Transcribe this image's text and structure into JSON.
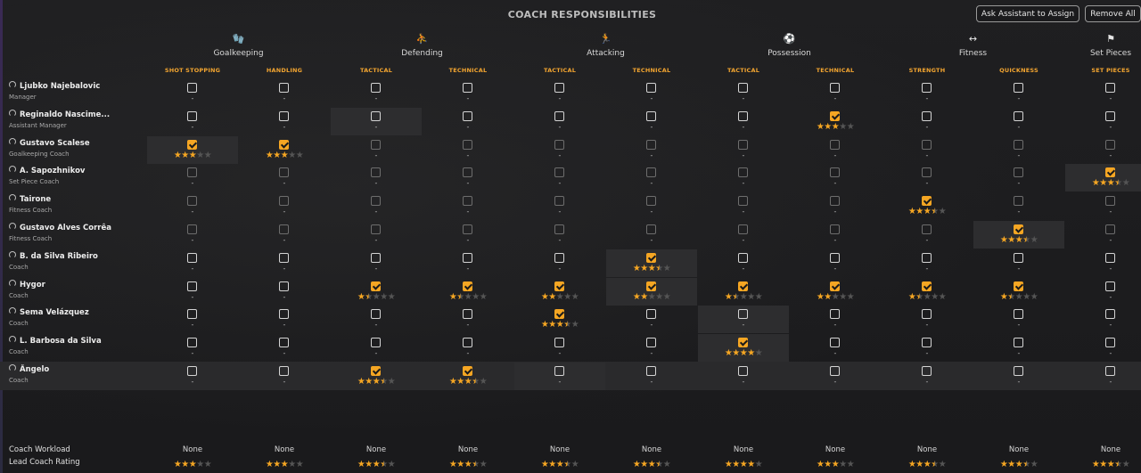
{
  "header": {
    "title": "COACH RESPONSIBILITIES",
    "assistant_button": "Ask Assistant to Assign",
    "remove_all_button": "Remove All"
  },
  "categories": [
    {
      "label": "Goalkeeping",
      "icon": "goalkeeping-icon",
      "glyph": "🧤"
    },
    {
      "label": "Defending",
      "icon": "defending-icon",
      "glyph": "⛹"
    },
    {
      "label": "Attacking",
      "icon": "attacking-icon",
      "glyph": "🏃"
    },
    {
      "label": "Possession",
      "icon": "possession-icon",
      "glyph": "⚽"
    },
    {
      "label": "Fitness",
      "icon": "fitness-icon",
      "glyph": "↔"
    },
    {
      "label": "Set Pieces",
      "icon": "set-pieces-icon",
      "glyph": "⚑"
    }
  ],
  "columns": [
    "SHOT STOPPING",
    "HANDLING",
    "TACTICAL",
    "TECHNICAL",
    "TACTICAL",
    "TECHNICAL",
    "TACTICAL",
    "TECHNICAL",
    "STRENGTH",
    "QUICKNESS",
    "SET PIECES"
  ],
  "staff": [
    {
      "name": "Ljubko Najebalovic",
      "role": "Manager"
    },
    {
      "name": "Reginaldo Nascime...",
      "role": "Assistant Manager"
    },
    {
      "name": "Gustavo Scalese",
      "role": "Goalkeeping Coach"
    },
    {
      "name": "A. Sapozhnikov",
      "role": "Set Piece Coach"
    },
    {
      "name": "Tairone",
      "role": "Fitness Coach"
    },
    {
      "name": "Gustavo Alves Corrêa",
      "role": "Fitness Coach"
    },
    {
      "name": "B. da Silva Ribeiro",
      "role": "Coach"
    },
    {
      "name": "Hygor",
      "role": "Coach"
    },
    {
      "name": "Sema Velázquez",
      "role": "Coach"
    },
    {
      "name": "L. Barbosa da Silva",
      "role": "Coach"
    },
    {
      "name": "Ângelo",
      "role": "Coach"
    }
  ],
  "assignments": [
    [
      0,
      0,
      0,
      0,
      0,
      0,
      0,
      0,
      0,
      0,
      0
    ],
    [
      0,
      0,
      0,
      0,
      0,
      0,
      0,
      3,
      0,
      0,
      0
    ],
    [
      3,
      3,
      0,
      0,
      0,
      0,
      0,
      0,
      0,
      0,
      0
    ],
    [
      0,
      0,
      0,
      0,
      0,
      0,
      0,
      0,
      0,
      0,
      3.5
    ],
    [
      0,
      0,
      0,
      0,
      0,
      0,
      0,
      0,
      3.5,
      0,
      0
    ],
    [
      0,
      0,
      0,
      0,
      0,
      0,
      0,
      0,
      0,
      3.5,
      0
    ],
    [
      0,
      0,
      0,
      0,
      0,
      3.5,
      0,
      0,
      0,
      0,
      0
    ],
    [
      0,
      0,
      1.5,
      1.5,
      2,
      2,
      1.5,
      2,
      1.5,
      1.5,
      0
    ],
    [
      0,
      0,
      0,
      0,
      3.5,
      0,
      0,
      0,
      0,
      0,
      0
    ],
    [
      0,
      0,
      0,
      0,
      0,
      0,
      4,
      0,
      0,
      0,
      0
    ],
    [
      0,
      0,
      3.5,
      3.5,
      0,
      0,
      0,
      0,
      0,
      0,
      0
    ]
  ],
  "dimmed_rows": [
    2,
    3,
    4,
    5
  ],
  "highlight_cells": [
    [
      1,
      2
    ],
    [
      2,
      0
    ],
    [
      3,
      10
    ],
    [
      5,
      9
    ],
    [
      6,
      5
    ],
    [
      7,
      5
    ],
    [
      8,
      6
    ],
    [
      9,
      6
    ],
    [
      10,
      4
    ]
  ],
  "selected_row": 10,
  "empty_value": "-",
  "footer": {
    "workload_label": "Coach Workload",
    "rating_label": "Lead Coach Rating",
    "workload": [
      "None",
      "None",
      "None",
      "None",
      "None",
      "None",
      "None",
      "None",
      "None",
      "None",
      "None"
    ],
    "ratings": [
      3,
      3,
      3.5,
      3.5,
      3.5,
      3.5,
      4,
      3,
      3.5,
      3.5,
      3.5
    ]
  },
  "colors": {
    "accent": "#f5a623",
    "background": "#1c1c1e",
    "subheader": "#f3a530"
  }
}
